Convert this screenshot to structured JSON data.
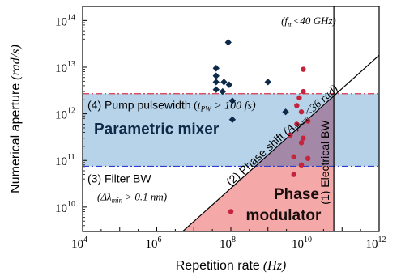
{
  "chart_data": {
    "type": "scatter",
    "xlabel": "Repetition rate",
    "xlabel_unit": "(Hz)",
    "ylabel": "Numerical aperture",
    "ylabel_unit": "(rad/s)",
    "x_scale": "log",
    "y_scale": "log",
    "xlim": [
      10000,
      1000000000000
    ],
    "ylim": [
      3000000000,
      200000000000000
    ],
    "x_ticks": [
      {
        "value": 10000,
        "base": "10",
        "exp": "4"
      },
      {
        "value": 1000000,
        "base": "10",
        "exp": "6"
      },
      {
        "value": 100000000,
        "base": "10",
        "exp": "8"
      },
      {
        "value": 10000000000,
        "base": "10",
        "exp": "10"
      },
      {
        "value": 1000000000000,
        "base": "10",
        "exp": "12"
      }
    ],
    "y_ticks": [
      {
        "value": 10000000000,
        "base": "10",
        "exp": "10"
      },
      {
        "value": 100000000000,
        "base": "10",
        "exp": "11"
      },
      {
        "value": 1000000000000,
        "base": "10",
        "exp": "12"
      },
      {
        "value": 10000000000000,
        "base": "10",
        "exp": "13"
      },
      {
        "value": 100000000000000,
        "base": "10",
        "exp": "14"
      }
    ],
    "regions": {
      "parametric_mixer": {
        "label": "Parametric mixer",
        "y_low": 75000000000,
        "y_high": 2700000000000,
        "color": "#b7d3ea"
      },
      "phase_modulator": {
        "label_line1": "Phase",
        "label_line2": "modulator",
        "color": "#f4a8a8"
      }
    },
    "limits": {
      "pump": {
        "text": "(4) Pump pulsewidth",
        "cond_var": "t",
        "cond_sub": "PW",
        "cond_rest": " > 100 fs)",
        "y": 2700000000000,
        "color": "#d9334a"
      },
      "filter": {
        "text": "(3) Filter BW",
        "cond_var": "Δλ",
        "cond_sub": "min",
        "cond_rest": " > 0.1 nm)",
        "y": 75000000000,
        "color": "#2b3fd1"
      },
      "phase_shift": {
        "text": "(2) Phase shift",
        "cond_var": "A",
        "cond_sub": "phase",
        "cond_rest": "<36 rad)",
        "x0": 5000000,
        "y0": 3000000000,
        "x1": 70000000000,
        "y1": 2700000000000
      },
      "electrical": {
        "text": "(1) Electrical BW",
        "cond": "(f",
        "cond_sub": "m",
        "cond_rest": "<40 GHz)",
        "x": 60000000000
      }
    },
    "series": [
      {
        "name": "",
        "marker": "diamond",
        "color": "#0d2a48",
        "points": [
          {
            "x": 85000000,
            "y": 34000000000000
          },
          {
            "x": 40000000,
            "y": 9500000000000
          },
          {
            "x": 40000000,
            "y": 6500000000000
          },
          {
            "x": 40000000,
            "y": 4800000000000
          },
          {
            "x": 40000000,
            "y": 3300000000000
          },
          {
            "x": 65000000,
            "y": 4800000000000
          },
          {
            "x": 90000000,
            "y": 4200000000000
          },
          {
            "x": 60000000,
            "y": 3000000000000
          },
          {
            "x": 110000000,
            "y": 1900000000000
          },
          {
            "x": 110000000,
            "y": 750000000000
          },
          {
            "x": 1000000000,
            "y": 4800000000000
          },
          {
            "x": 3000000000,
            "y": 1100000000000
          }
        ]
      },
      {
        "name": "",
        "marker": "circle",
        "color": "#c4243c",
        "points": [
          {
            "x": 9000000000,
            "y": 9000000000000
          },
          {
            "x": 9000000000,
            "y": 3000000000000
          },
          {
            "x": 7000000000,
            "y": 2200000000000
          },
          {
            "x": 6000000000,
            "y": 1500000000000
          },
          {
            "x": 8000000000,
            "y": 1100000000000
          },
          {
            "x": 6000000000,
            "y": 600000000000
          },
          {
            "x": 12000000000,
            "y": 700000000000
          },
          {
            "x": 4000000000,
            "y": 350000000000
          },
          {
            "x": 9000000000,
            "y": 300000000000
          },
          {
            "x": 8000000000,
            "y": 240000000000
          },
          {
            "x": 5000000000,
            "y": 120000000000
          },
          {
            "x": 8000000000,
            "y": 80000000000
          },
          {
            "x": 12000000000,
            "y": 110000000000
          },
          {
            "x": 5000000000,
            "y": 50000000000
          },
          {
            "x": 100000000,
            "y": 8000000000
          }
        ]
      }
    ],
    "grid": false,
    "legend": "none"
  }
}
